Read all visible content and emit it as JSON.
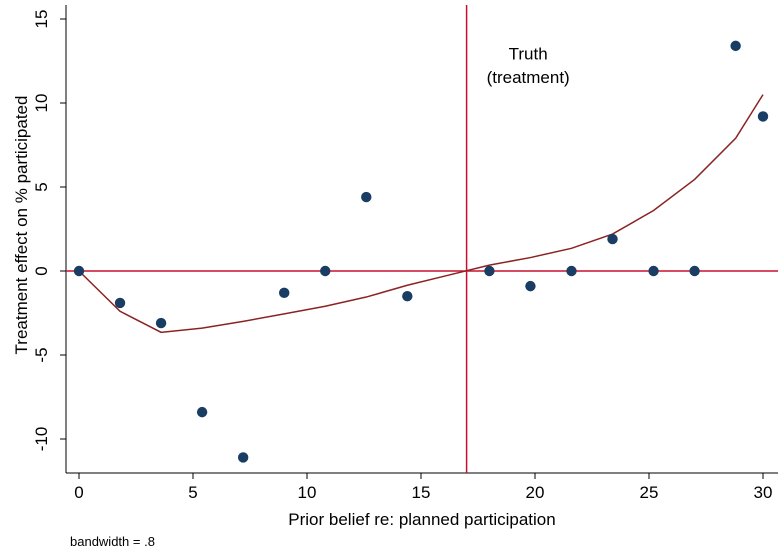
{
  "chart_data": {
    "type": "scatter",
    "xlabel": "Prior belief re: planned participation",
    "ylabel": "Treatment effect on % participated",
    "xlim": [
      -0.5,
      30.5
    ],
    "ylim": [
      -11.5,
      15.5
    ],
    "x_ticks": [
      0,
      5,
      10,
      15,
      20,
      25,
      30
    ],
    "y_ticks": [
      -10,
      -5,
      0,
      5,
      10,
      15
    ],
    "grid": false,
    "colors": {
      "points": "#1a3d64",
      "fit": "#8b2323",
      "reference": "#c8102e"
    },
    "points": {
      "x": [
        0,
        1.8,
        3.6,
        5.4,
        7.2,
        9.0,
        10.8,
        12.6,
        14.4,
        18.0,
        19.8,
        21.6,
        23.4,
        25.2,
        27.0,
        28.8,
        30.0
      ],
      "y": [
        0,
        -1.9,
        -3.1,
        -8.4,
        -11.1,
        -1.3,
        0,
        4.4,
        -1.5,
        0,
        -0.9,
        0,
        1.9,
        0,
        0,
        13.4,
        9.2
      ]
    },
    "fit_line": {
      "x": [
        0,
        1.8,
        3.6,
        5.4,
        7.2,
        9.0,
        10.8,
        12.6,
        14.4,
        16.2,
        18.0,
        19.8,
        21.6,
        23.4,
        25.2,
        27.0,
        28.8,
        30.0
      ],
      "y": [
        0,
        -2.4,
        -3.65,
        -3.4,
        -3.0,
        -2.55,
        -2.1,
        -1.55,
        -0.85,
        -0.25,
        0.35,
        0.8,
        1.35,
        2.2,
        3.6,
        5.45,
        7.9,
        10.5
      ]
    },
    "reference_lines": {
      "horizontal_y": 0,
      "vertical_x": 17
    },
    "annotations": [
      {
        "text": "Truth",
        "x": 19.7,
        "y": 12.6
      },
      {
        "text": "(treatment)",
        "x": 19.7,
        "y": 11.2
      }
    ],
    "note": "bandwidth = .8"
  }
}
